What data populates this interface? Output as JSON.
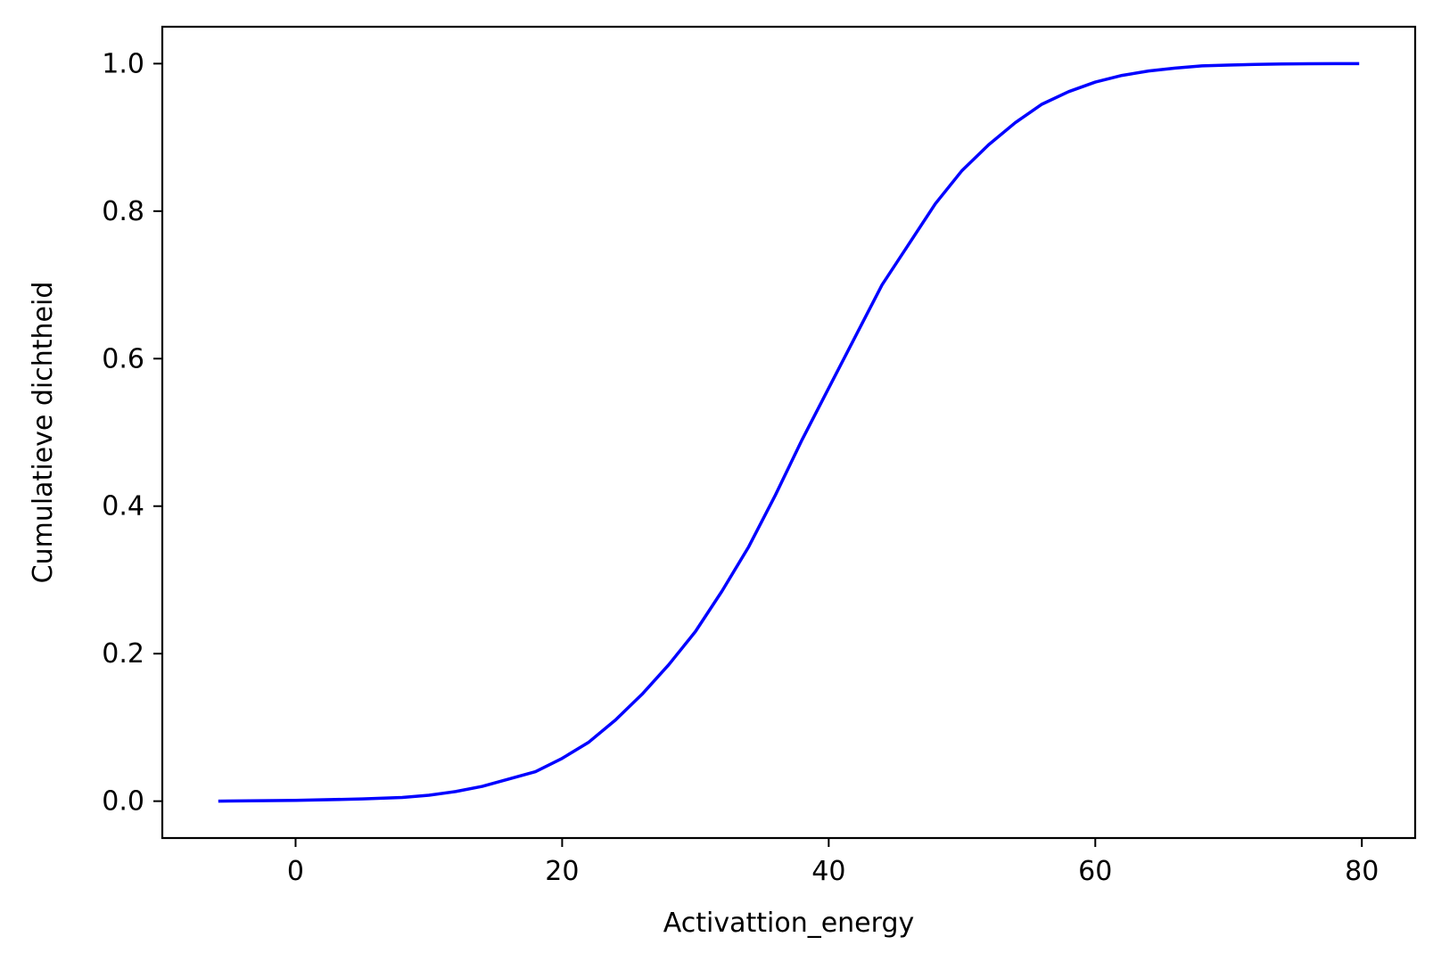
{
  "chart_data": {
    "type": "line",
    "title": "",
    "xlabel": "Activattion_energy",
    "ylabel": "Cumulatieve dichtheid",
    "xlim": [
      -10,
      84
    ],
    "ylim": [
      -0.05,
      1.05
    ],
    "xticks": [
      0,
      20,
      40,
      60,
      80
    ],
    "xtick_labels": [
      "0",
      "20",
      "40",
      "60",
      "80"
    ],
    "yticks": [
      0.0,
      0.2,
      0.4,
      0.6,
      0.8,
      1.0
    ],
    "ytick_labels": [
      "0.0",
      "0.2",
      "0.4",
      "0.6",
      "0.8",
      "1.0"
    ],
    "grid": false,
    "series": [
      {
        "color": "#0000ff",
        "x": [
          -5.8,
          0,
          5,
          8,
          10,
          12,
          14,
          16,
          18,
          20,
          22,
          24,
          26,
          28,
          30,
          32,
          34,
          36,
          38,
          40,
          42,
          44,
          46,
          48,
          50,
          52,
          54,
          56,
          58,
          60,
          62,
          64,
          66,
          68,
          70,
          72,
          74,
          76,
          78,
          79.8
        ],
        "y": [
          0.0,
          0.001,
          0.003,
          0.005,
          0.008,
          0.013,
          0.02,
          0.03,
          0.04,
          0.058,
          0.08,
          0.11,
          0.145,
          0.185,
          0.23,
          0.285,
          0.345,
          0.415,
          0.49,
          0.56,
          0.63,
          0.7,
          0.755,
          0.81,
          0.855,
          0.89,
          0.92,
          0.945,
          0.962,
          0.975,
          0.984,
          0.99,
          0.994,
          0.997,
          0.998,
          0.999,
          0.9995,
          0.9998,
          1.0,
          1.0
        ]
      }
    ]
  }
}
